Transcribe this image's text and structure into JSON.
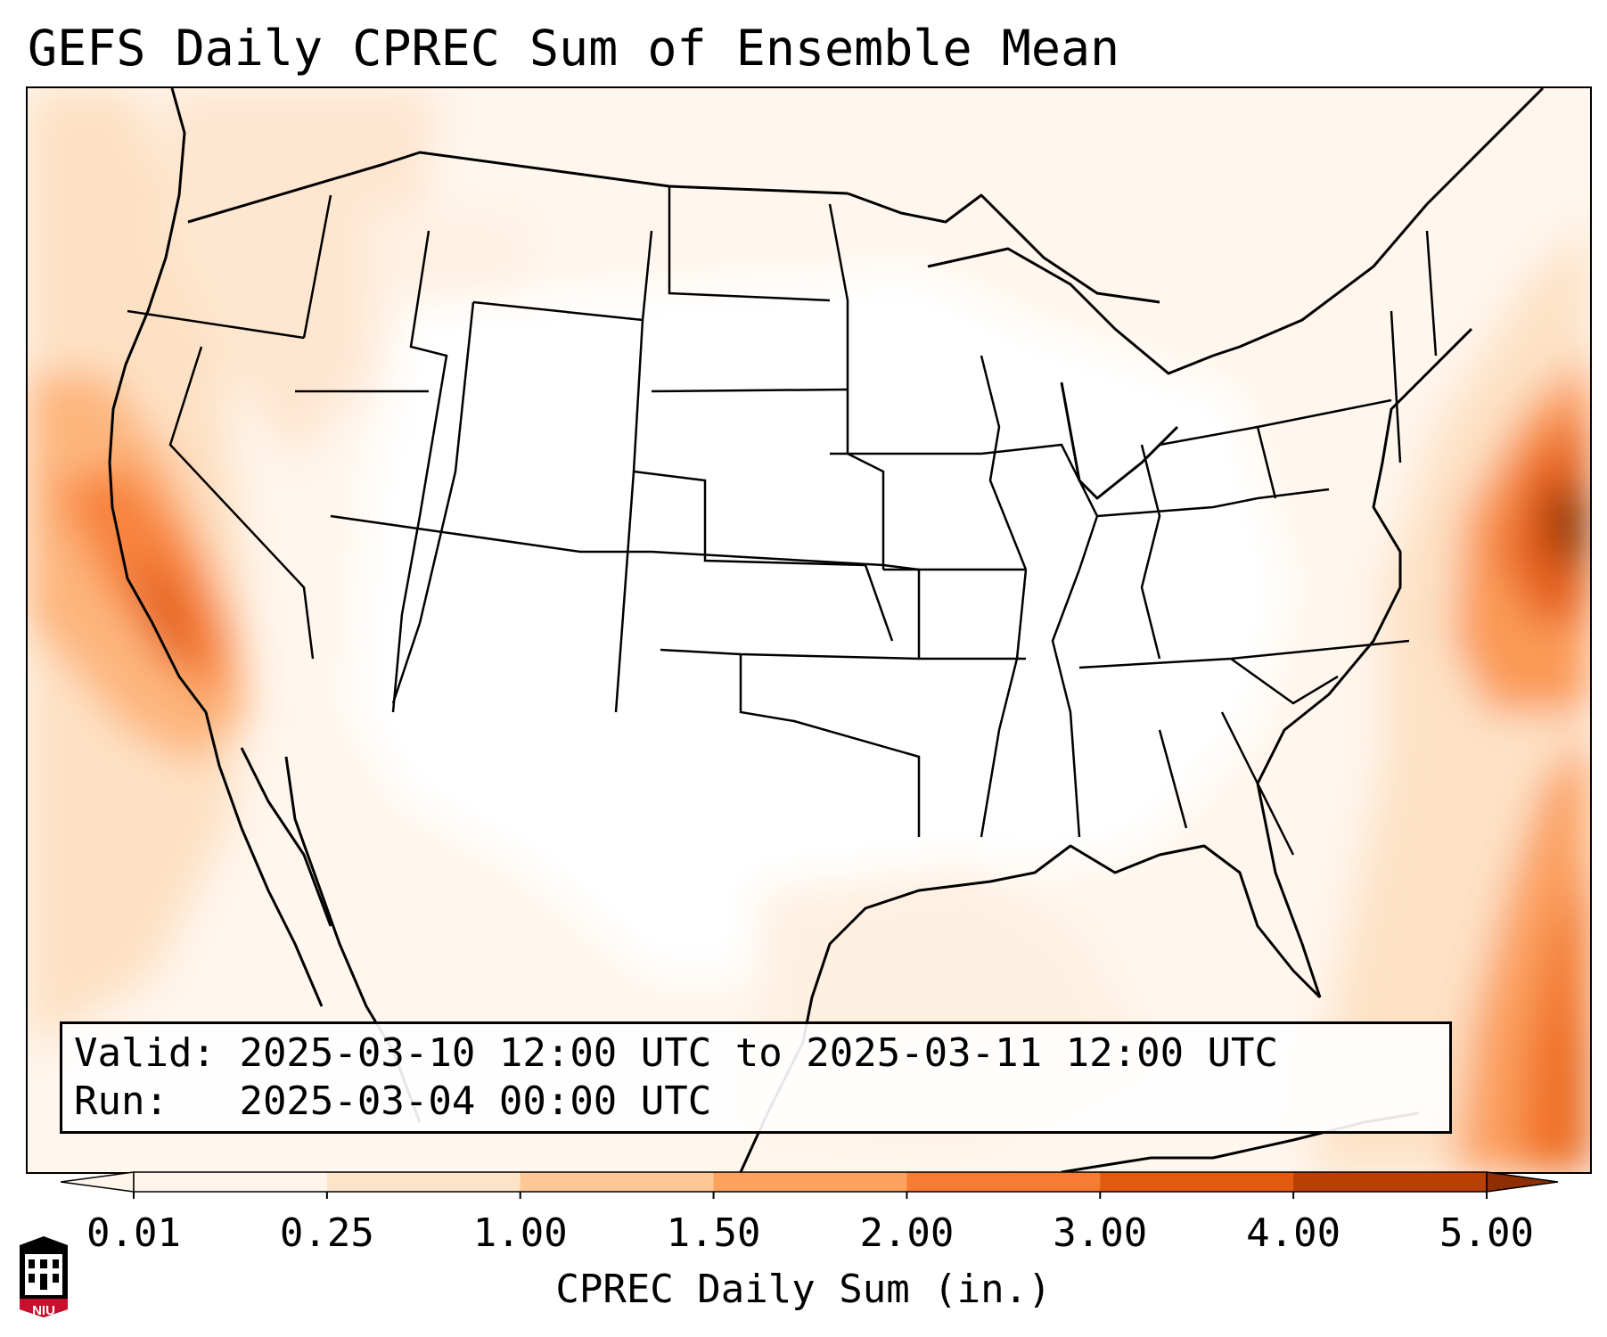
{
  "title": "GEFS Daily CPREC Sum of Ensemble Mean",
  "info": {
    "valid_label": "Valid:",
    "valid_range": "2025-03-10 12:00 UTC to 2025-03-11 12:00 UTC",
    "run_label": "Run:",
    "run_time": "2025-03-04 00:00 UTC"
  },
  "colorbar": {
    "label": "CPREC Daily Sum (in.)",
    "ticks": [
      "0.01",
      "0.25",
      "1.00",
      "1.50",
      "2.00",
      "3.00",
      "4.00",
      "5.00"
    ],
    "colors": [
      "#fff5eb",
      "#fde3c8",
      "#fdc895",
      "#fda15e",
      "#f67c33",
      "#e15a10",
      "#b93f04",
      "#8f2e04"
    ],
    "extend": "both"
  },
  "logo": {
    "text": "NIU",
    "color": "#c8102e"
  }
}
